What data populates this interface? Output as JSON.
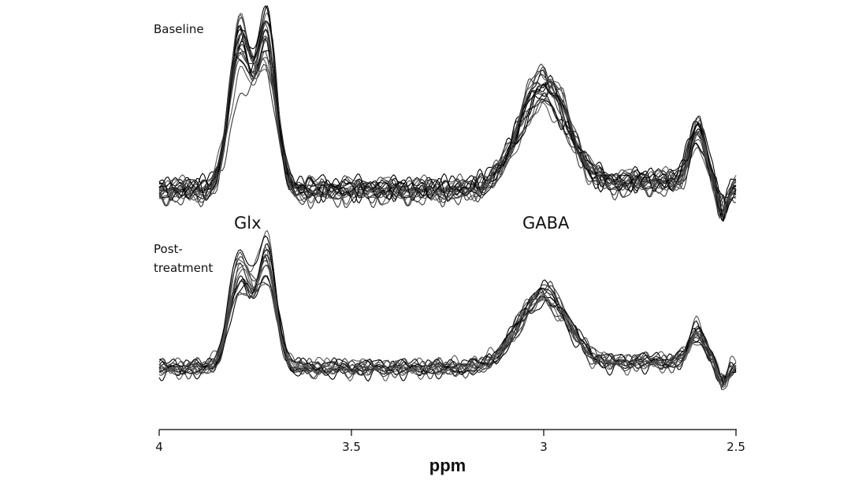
{
  "chart_data": {
    "type": "line",
    "xlabel": "ppm",
    "x_reversed": true,
    "xlim": [
      4,
      2.5
    ],
    "xticks": [
      "4",
      "3.5",
      "3",
      "2.5"
    ],
    "grid": false,
    "line_colors": [
      "#000000",
      "#3a3a3a",
      "#555555"
    ],
    "peak_labels": [
      {
        "text": "Glx",
        "ppm": 3.75
      },
      {
        "text": "GABA",
        "ppm": 3.0
      }
    ],
    "panels": [
      {
        "label_lines": [
          "Baseline"
        ],
        "n_spectra": 20,
        "peaks": [
          {
            "ppm": 3.79,
            "height_range": [
              0.55,
              0.96
            ]
          },
          {
            "ppm": 3.72,
            "height_range": [
              0.6,
              1.0
            ]
          },
          {
            "ppm": 3.0,
            "height_range": [
              0.44,
              0.68
            ]
          },
          {
            "ppm": 2.6,
            "height_range": [
              0.22,
              0.38
            ]
          }
        ]
      },
      {
        "label_lines": [
          "Post-",
          "treatment"
        ],
        "n_spectra": 15,
        "peaks": [
          {
            "ppm": 3.79,
            "height_range": [
              0.55,
              0.9
            ]
          },
          {
            "ppm": 3.72,
            "height_range": [
              0.6,
              0.96
            ]
          },
          {
            "ppm": 3.0,
            "height_range": [
              0.5,
              0.62
            ]
          },
          {
            "ppm": 2.6,
            "height_range": [
              0.2,
              0.3
            ]
          }
        ]
      }
    ]
  }
}
